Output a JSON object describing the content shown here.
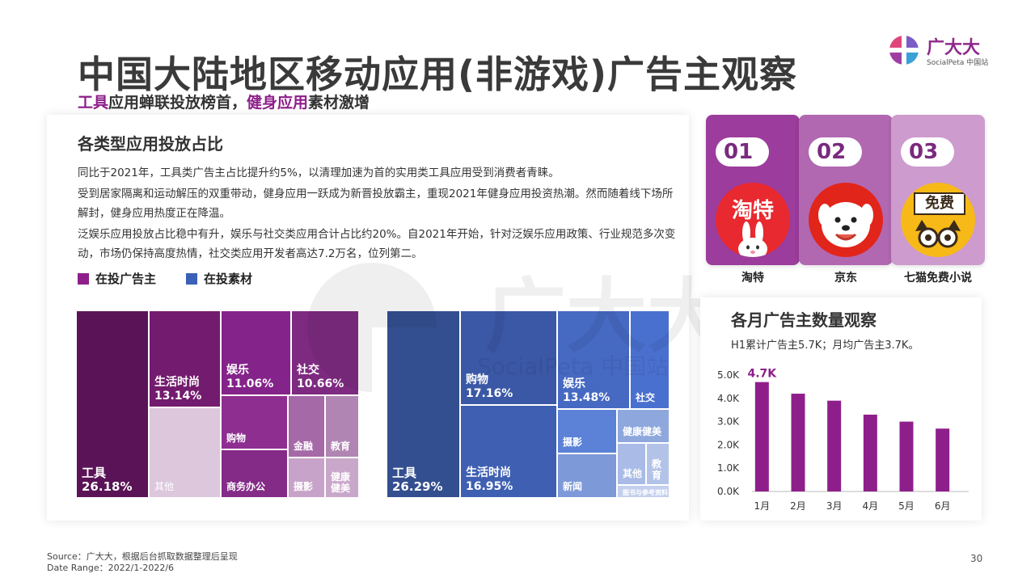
{
  "header": {
    "title": "中国大陆地区移动应用(非游戏)广告主观察",
    "subtitle_hl1": "工具",
    "subtitle_mid": "应用蝉联投放榜首，",
    "subtitle_hl2": "健身应用",
    "subtitle_end": "素材激增"
  },
  "logo": {
    "name": "广大大",
    "sub": "SocialPeta 中国站"
  },
  "watermark": {
    "main": "广大大",
    "sub": "SocialPeta 中国站"
  },
  "left_panel": {
    "title": "各类型应用投放占比",
    "paragraphs": [
      "同比于2021年，工具类广告主占比提升约5%，以清理加速为首的实用类工具应用受到消费者青睐。",
      "受到居家隔离和运动解压的双重带动，健身应用一跃成为新晋投放霸主，重现2021年健身应用投资热潮。然而随着线下场所解封，健身应用热度正在降温。",
      "泛娱乐应用投放占比稳中有升，娱乐与社交类应用合计占比约20%。自2021年开始，针对泛娱乐应用政策、行业规范多次变动，市场仍保持高度热情，社交类应用开发者高达7.2万名，位列第二。"
    ],
    "legend": [
      {
        "label": "在投广告主",
        "color": "#8e1f8a"
      },
      {
        "label": "在投素材",
        "color": "#3a60b8"
      }
    ]
  },
  "chart_data": [
    {
      "type": "treemap",
      "title": "",
      "series": "在投广告主",
      "items": [
        {
          "name": "工具",
          "value": 26.18,
          "label": "26.18%"
        },
        {
          "name": "生活时尚",
          "value": 13.14,
          "label": "13.14%"
        },
        {
          "name": "娱乐",
          "value": 11.06,
          "label": "11.06%"
        },
        {
          "name": "社交",
          "value": 10.66,
          "label": "10.66%"
        },
        {
          "name": "其他",
          "value": null,
          "label": ""
        },
        {
          "name": "购物",
          "value": null,
          "label": ""
        },
        {
          "name": "商务办公",
          "value": null,
          "label": ""
        },
        {
          "name": "金融",
          "value": null,
          "label": ""
        },
        {
          "name": "教育",
          "value": null,
          "label": ""
        },
        {
          "name": "摄影",
          "value": null,
          "label": ""
        },
        {
          "name": "健康健美",
          "value": null,
          "label": ""
        }
      ]
    },
    {
      "type": "treemap",
      "title": "",
      "series": "在投素材",
      "items": [
        {
          "name": "工具",
          "value": 26.29,
          "label": "26.29%"
        },
        {
          "name": "购物",
          "value": 17.16,
          "label": "17.16%"
        },
        {
          "name": "生活时尚",
          "value": 16.95,
          "label": "16.95%"
        },
        {
          "name": "娱乐",
          "value": 13.48,
          "label": "13.48%"
        },
        {
          "name": "社交",
          "value": null,
          "label": ""
        },
        {
          "name": "摄影",
          "value": null,
          "label": ""
        },
        {
          "name": "健康健美",
          "value": null,
          "label": ""
        },
        {
          "name": "新闻",
          "value": null,
          "label": ""
        },
        {
          "name": "其他",
          "value": null,
          "label": ""
        },
        {
          "name": "教育",
          "value": null,
          "label": ""
        },
        {
          "name": "图书与参考资料",
          "value": null,
          "label": ""
        }
      ]
    },
    {
      "type": "bar",
      "title": "各月广告主数量观察",
      "subtitle": "H1累计广告主5.7K；月均广告主3.7K。",
      "categories": [
        "1月",
        "2月",
        "3月",
        "4月",
        "5月",
        "6月"
      ],
      "values": [
        4.7,
        4.2,
        3.9,
        3.3,
        3.0,
        2.7
      ],
      "yticks": [
        "0.0K",
        "1.0K",
        "2.0K",
        "3.0K",
        "4.0K",
        "5.0K"
      ],
      "ylim": [
        0,
        5
      ],
      "highlight": {
        "index": 0,
        "label": "4.7K"
      },
      "color": "#8e1f8a"
    }
  ],
  "ranking": [
    {
      "rank": "01",
      "name": "淘特",
      "icon_text": "淘特",
      "box_color": "#9c3c9c",
      "icon_bg": "#e8292f"
    },
    {
      "rank": "02",
      "name": "京东",
      "icon_text": "",
      "box_color": "#b168b1",
      "icon_bg": "#e1251b"
    },
    {
      "rank": "03",
      "name": "七猫免费小说",
      "icon_text": "免费",
      "box_color": "#cd9bcd",
      "icon_bg": "#f6b918"
    }
  ],
  "footer": {
    "source": "Source：广大大，根据后台抓取数据整理后呈现",
    "range": "Date Range：2022/1-2022/6",
    "page": "30"
  }
}
